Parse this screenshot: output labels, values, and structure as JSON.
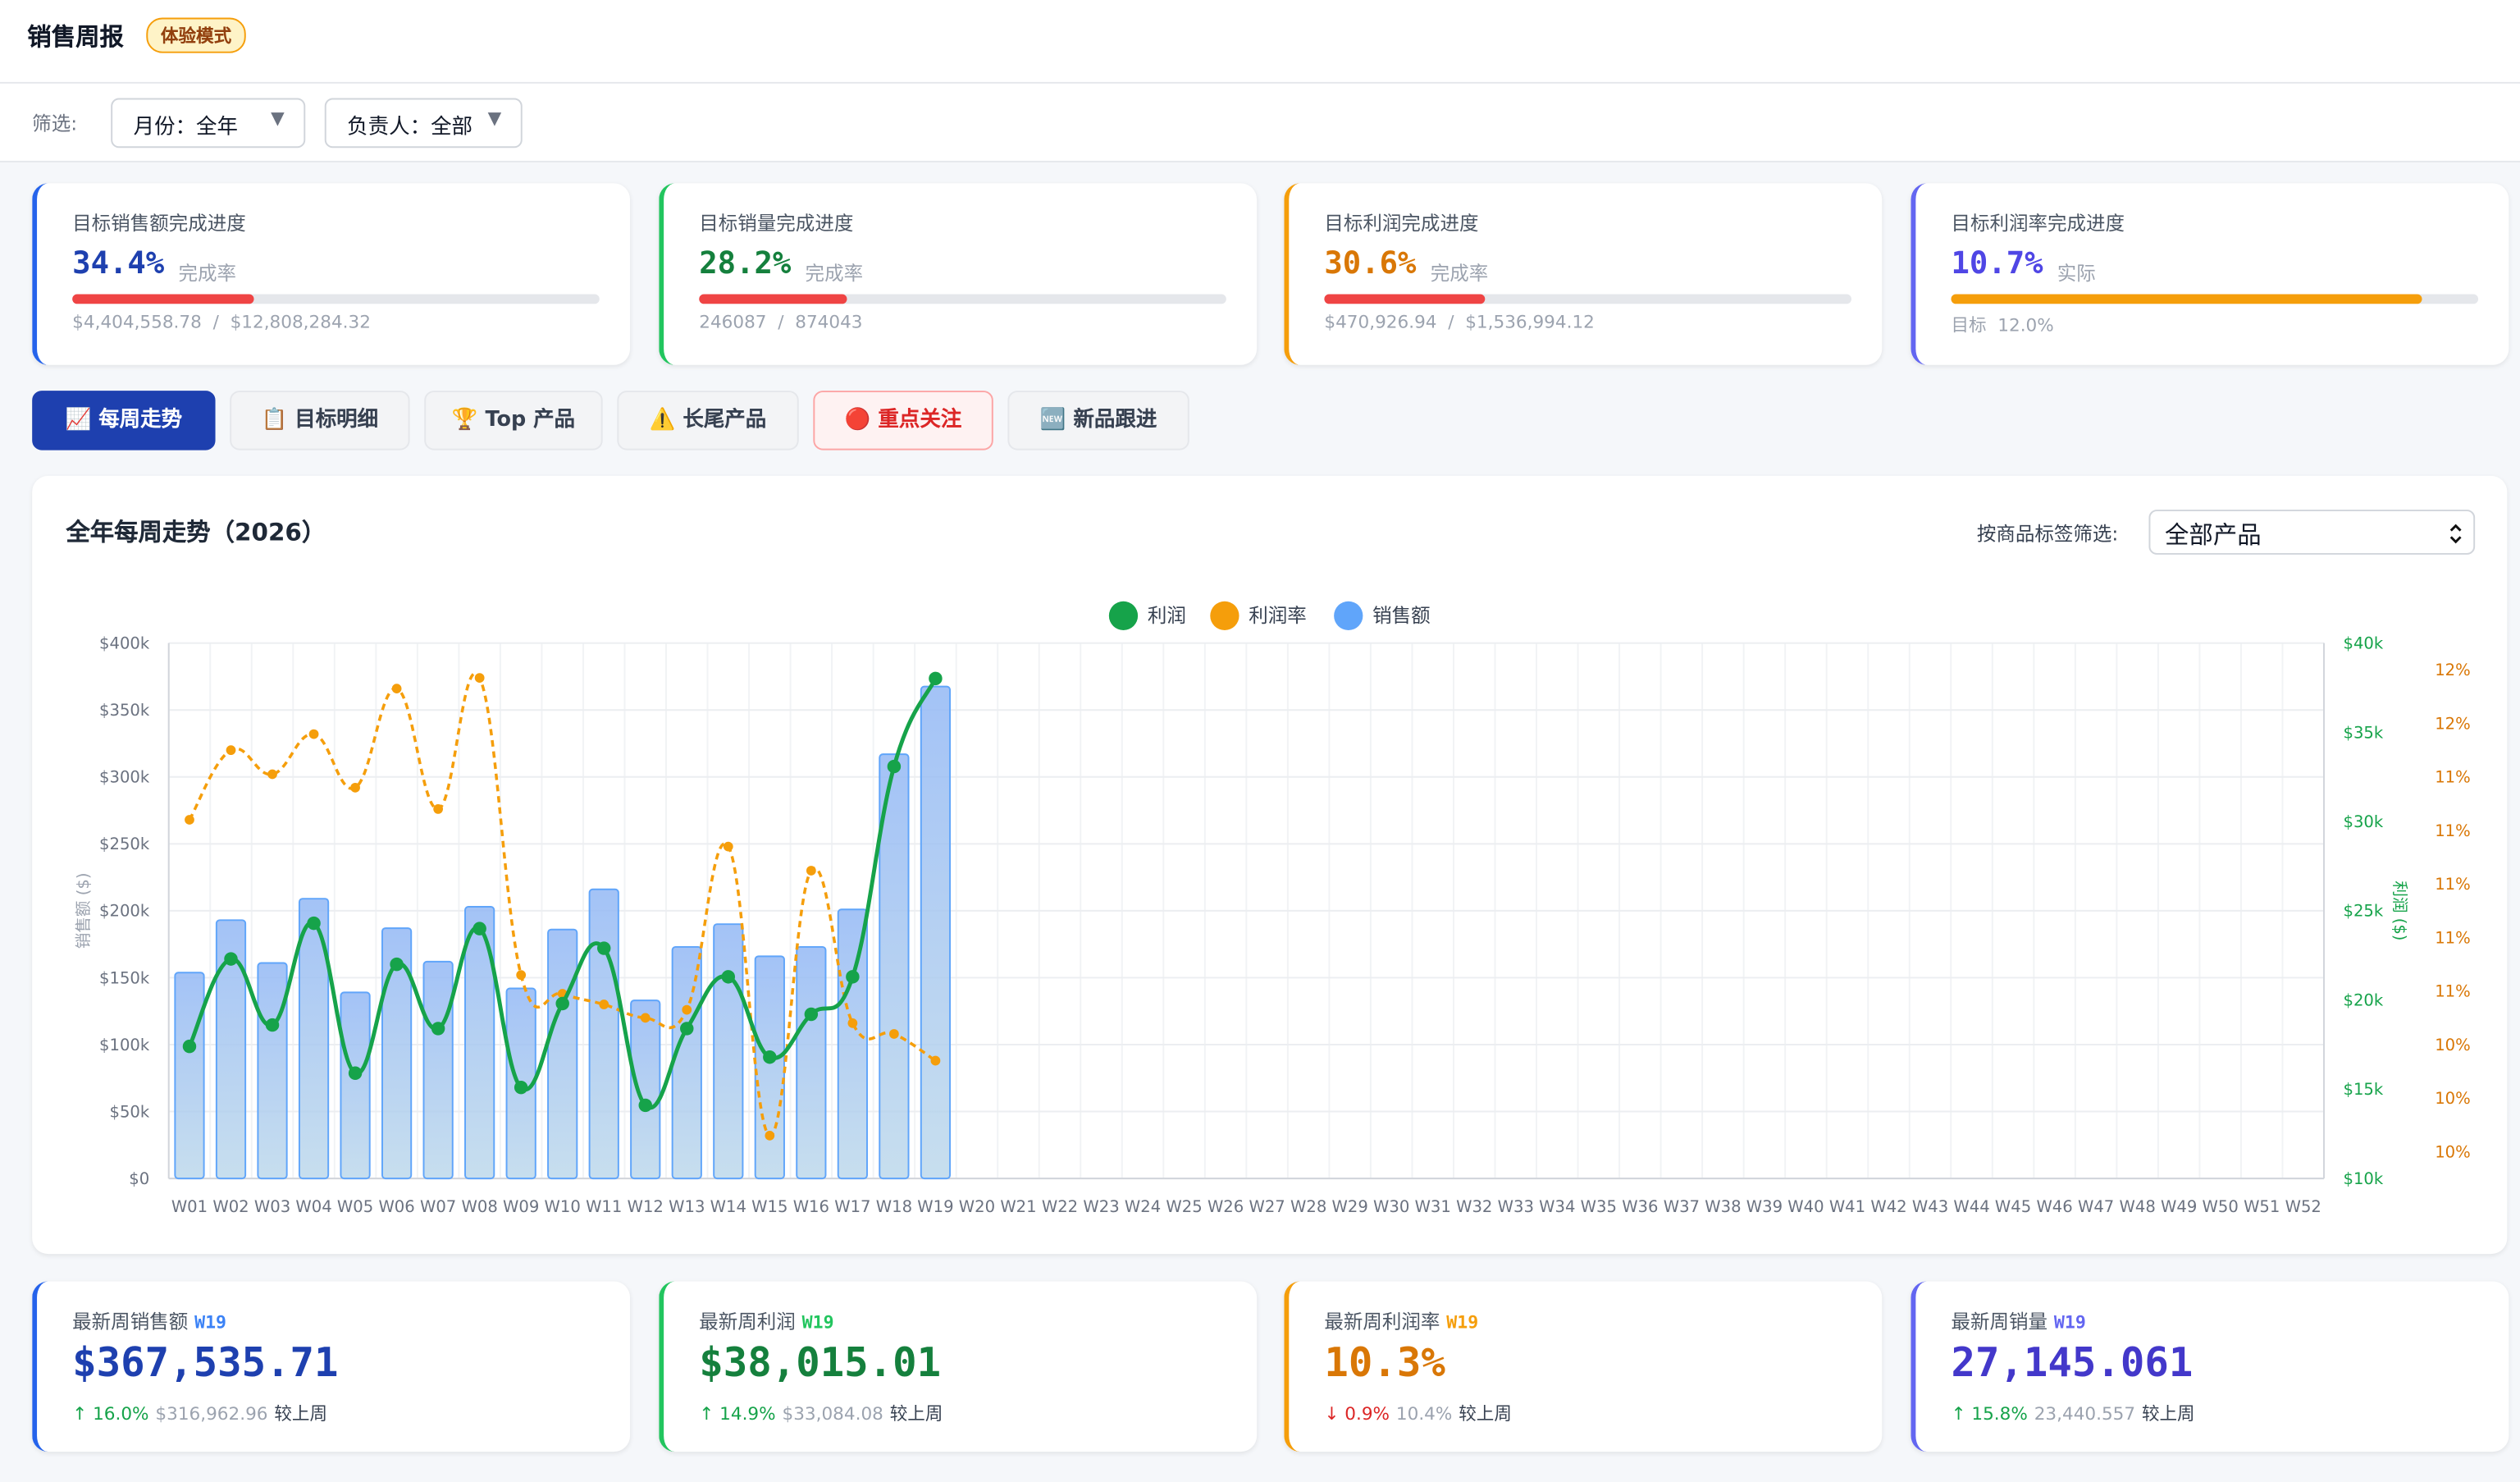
{
  "header": {
    "title": "销售周报",
    "badge": "体验模式"
  },
  "filters": {
    "label": "筛选:",
    "items": [
      "月份：全年",
      "负责人：全部"
    ],
    "arrow": "▼"
  },
  "kpis": [
    {
      "label": "目标销售额完成进度",
      "value": "34.4%",
      "unit": "完成率",
      "progress": 34.4,
      "color": "#1e40af",
      "border": "#2563eb",
      "bar_color": "#ef4444",
      "footer": [
        "$4,404,558.78",
        "/",
        "$12,808,284.32"
      ]
    },
    {
      "label": "目标销量完成进度",
      "value": "28.2%",
      "unit": "完成率",
      "progress": 28.2,
      "color": "#15803d",
      "border": "#22c55e",
      "bar_color": "#ef4444",
      "footer": [
        "246087",
        "/",
        "874043"
      ]
    },
    {
      "label": "目标利润完成进度",
      "value": "30.6%",
      "unit": "完成率",
      "progress": 30.6,
      "color": "#d97706",
      "border": "#f59e0b",
      "bar_color": "#ef4444",
      "footer": [
        "$470,926.94",
        "/",
        "$1,536,994.12"
      ]
    },
    {
      "label": "目标利润率完成进度",
      "value": "10.7%",
      "unit": "实际",
      "progress": 89.2,
      "color": "#4f46e5",
      "border": "#6366f1",
      "bar_color": "#f59e0b",
      "footer": [
        "目标",
        "12.0%"
      ]
    }
  ],
  "tabs": [
    {
      "label": "📈 每周走势",
      "style": "active"
    },
    {
      "label": "📋 目标明细",
      "style": "plain"
    },
    {
      "label": "🏆 Top 产品",
      "style": "plain"
    },
    {
      "label": "⚠️ 长尾产品",
      "style": "plain"
    },
    {
      "label": "🔴 重点关注",
      "style": "alert"
    },
    {
      "label": "🆕 新品跟进",
      "style": "plain"
    }
  ],
  "chart_data": {
    "type": "bar",
    "title": "全年每周走势（2026）",
    "filter_label": "按商品标签筛选:",
    "filter_value": "全部产品",
    "ylabel": "销售额 ($)",
    "y2label": "利润 ($)",
    "categories": [
      "W01",
      "W02",
      "W03",
      "W04",
      "W05",
      "W06",
      "W07",
      "W08",
      "W09",
      "W10",
      "W11",
      "W12",
      "W13",
      "W14",
      "W15",
      "W16",
      "W17",
      "W18",
      "W19",
      "W20",
      "W21",
      "W22",
      "W23",
      "W24",
      "W25",
      "W26",
      "W27",
      "W28",
      "W29",
      "W30",
      "W31",
      "W32",
      "W33",
      "W34",
      "W35",
      "W36",
      "W37",
      "W38",
      "W39",
      "W40",
      "W41",
      "W42",
      "W43",
      "W44",
      "W45",
      "W46",
      "W47",
      "W48",
      "W49",
      "W50",
      "W51",
      "W52"
    ],
    "series": [
      {
        "name": "利润",
        "type": "line",
        "axis": "y2",
        "color": "#16a34a",
        "values": [
          17400,
          22300,
          18600,
          24300,
          15900,
          22000,
          18400,
          24000,
          15100,
          19800,
          22900,
          14100,
          18400,
          21300,
          16800,
          19200,
          21300,
          33084.08,
          38015.01,
          null,
          null,
          null,
          null,
          null,
          null,
          null,
          null,
          null,
          null,
          null,
          null,
          null,
          null,
          null,
          null,
          null,
          null,
          null,
          null,
          null,
          null,
          null,
          null,
          null,
          null,
          null,
          null,
          null,
          null,
          null,
          null,
          null
        ]
      },
      {
        "name": "利润率",
        "type": "line",
        "axis": "y3",
        "color": "#f59e0b",
        "values": [
          11.2,
          11.46,
          11.37,
          11.52,
          11.32,
          11.69,
          11.24,
          11.73,
          10.62,
          10.55,
          10.51,
          10.46,
          10.49,
          11.1,
          10.02,
          11.01,
          10.44,
          10.4,
          10.3,
          null,
          null,
          null,
          null,
          null,
          null,
          null,
          null,
          null,
          null,
          null,
          null,
          null,
          null,
          null,
          null,
          null,
          null,
          null,
          null,
          null,
          null,
          null,
          null,
          null,
          null,
          null,
          null,
          null,
          null,
          null,
          null,
          null
        ]
      },
      {
        "name": "销售额",
        "type": "bar",
        "axis": "y",
        "color": "#60a5fa",
        "values": [
          153800,
          193000,
          161000,
          209000,
          139000,
          187000,
          162000,
          203000,
          142000,
          186000,
          216000,
          133000,
          173000,
          190000,
          166000,
          173000,
          201000,
          316962.96,
          367535.71,
          null,
          null,
          null,
          null,
          null,
          null,
          null,
          null,
          null,
          null,
          null,
          null,
          null,
          null,
          null,
          null,
          null,
          null,
          null,
          null,
          null,
          null,
          null,
          null,
          null,
          null,
          null,
          null,
          null,
          null,
          null,
          null,
          null
        ]
      }
    ],
    "ylim": [
      0,
      400000
    ],
    "yticks": [
      {
        "value": 0,
        "label": "$0"
      },
      {
        "value": 50000,
        "label": "$50k"
      },
      {
        "value": 100000,
        "label": "$100k"
      },
      {
        "value": 150000,
        "label": "$150k"
      },
      {
        "value": 200000,
        "label": "$200k"
      },
      {
        "value": 250000,
        "label": "$250k"
      },
      {
        "value": 300000,
        "label": "$300k"
      },
      {
        "value": 350000,
        "label": "$350k"
      },
      {
        "value": 400000,
        "label": "$400k"
      }
    ],
    "y2lim": [
      10000,
      40000
    ],
    "y2ticks": [
      {
        "value": 10000,
        "label": "$10k"
      },
      {
        "value": 15000,
        "label": "$15k"
      },
      {
        "value": 20000,
        "label": "$20k"
      },
      {
        "value": 25000,
        "label": "$25k"
      },
      {
        "value": 30000,
        "label": "$30k"
      },
      {
        "value": 35000,
        "label": "$35k"
      },
      {
        "value": 40000,
        "label": "$40k"
      }
    ],
    "y3lim": [
      9.86,
      11.86
    ],
    "y3ticks": [
      {
        "value": 9.96,
        "label": "10%"
      },
      {
        "value": 10.16,
        "label": "10%"
      },
      {
        "value": 10.36,
        "label": "10%"
      },
      {
        "value": 10.56,
        "label": "11%"
      },
      {
        "value": 10.76,
        "label": "11%"
      },
      {
        "value": 10.96,
        "label": "11%"
      },
      {
        "value": 11.16,
        "label": "11%"
      },
      {
        "value": 11.36,
        "label": "11%"
      },
      {
        "value": 11.56,
        "label": "12%"
      },
      {
        "value": 11.76,
        "label": "12%"
      }
    ],
    "grid": true
  },
  "latest": [
    {
      "label": "最新周销售额",
      "week": "W19",
      "value": "$367,535.71",
      "change": "↑ 16.0%",
      "previous": "$316,962.96",
      "suffix": "较上周",
      "color": "#1e40af",
      "border": "#2563eb",
      "week_color": "#3b82f6",
      "change_color": "#16a34a"
    },
    {
      "label": "最新周利润",
      "week": "W19",
      "value": "$38,015.01",
      "change": "↑ 14.9%",
      "previous": "$33,084.08",
      "suffix": "较上周",
      "color": "#15803d",
      "border": "#22c55e",
      "week_color": "#22c55e",
      "change_color": "#16a34a"
    },
    {
      "label": "最新周利润率",
      "week": "W19",
      "value": "10.3%",
      "change": "↓ 0.9%",
      "previous": "10.4%",
      "suffix": "较上周",
      "color": "#d97706",
      "border": "#f59e0b",
      "week_color": "#f59e0b",
      "change_color": "#dc2626"
    },
    {
      "label": "最新周销量",
      "week": "W19",
      "value": "27,145.061",
      "change": "↑ 15.8%",
      "previous": "23,440.557",
      "suffix": "较上周",
      "color": "#4338ca",
      "border": "#6366f1",
      "week_color": "#6366f1",
      "change_color": "#16a34a"
    }
  ]
}
